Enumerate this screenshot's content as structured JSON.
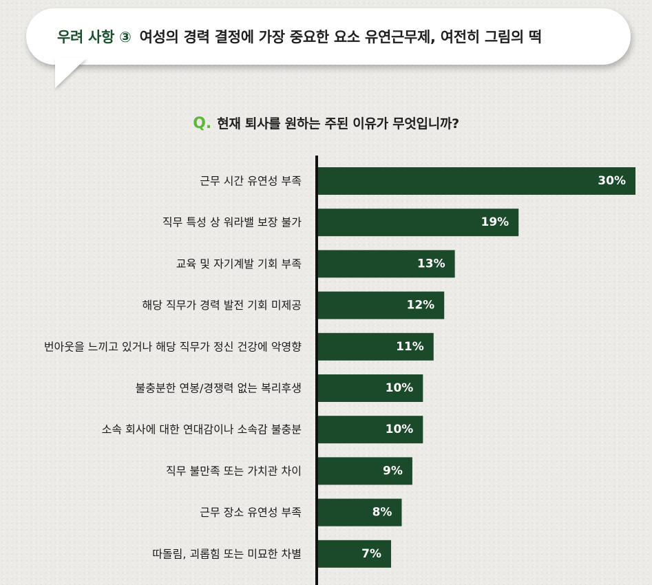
{
  "header": {
    "prefix": "우려 사항 ③",
    "text": "여성의 경력 결정에 가장 중요한 요소 유연근무제, 여전히 그림의 떡"
  },
  "question": {
    "mark": "Q.",
    "text": "현재 퇴사를 원하는 주된 이유가 무엇입니까?"
  },
  "colors": {
    "bar": "#1b4a2b",
    "axis": "#111111",
    "accent": "#5db83a",
    "title_green": "#1a4f2c"
  },
  "chart_data": {
    "type": "bar",
    "orientation": "horizontal",
    "categories": [
      "근무 시간 유연성 부족",
      "직무 특성 상 워라밸 보장 불가",
      "교육 및 자기계발 기회 부족",
      "해당 직무가 경력 발전 기회 미제공",
      "번아웃을 느끼고 있거나 해당 직무가 정신 건강에 악영향",
      "불충분한 연봉/경쟁력 없는 복리후생",
      "소속 회사에 대한 연대감이나 소속감 불충분",
      "직무 불만족 또는 가치관 차이",
      "근무 장소 유연성 부족",
      "따돌림, 괴롭힘 또는 미묘한 차별"
    ],
    "values": [
      30,
      19,
      13,
      12,
      11,
      10,
      10,
      9,
      8,
      7
    ],
    "value_labels": [
      "30%",
      "19%",
      "13%",
      "12%",
      "11%",
      "10%",
      "10%",
      "9%",
      "8%",
      "7%"
    ],
    "unit": "%",
    "xlim": [
      0,
      30
    ],
    "grid": false,
    "legend": "none"
  }
}
